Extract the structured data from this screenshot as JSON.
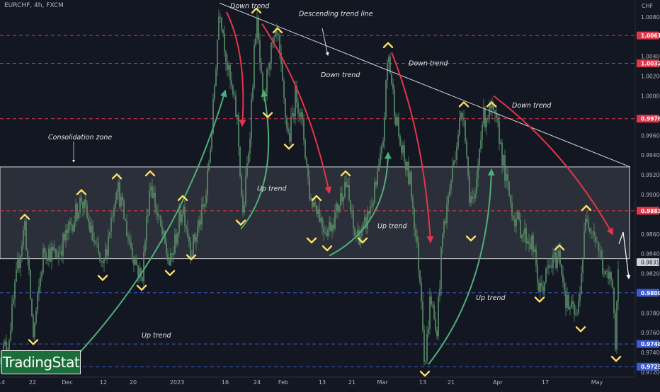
{
  "header": {
    "symbol": "EURCHF, 4h, FXCM",
    "currency": "CHF"
  },
  "brand": {
    "text": "TradingStat"
  },
  "colors": {
    "background": "#131722",
    "candles": "#5b8f6a",
    "resistance_lines": "#e0374a",
    "support_lines": "#3a5bd1",
    "down_arrows": "#e5344a",
    "up_arrows": "#4fae78",
    "markers": "#ffe066",
    "trendline": "#d1d4dc",
    "zone_fill": "rgba(210,210,215,0.13)",
    "zone_border": "#d8d8d8",
    "current_price_arrow": "#ffffff"
  },
  "chart_data": {
    "type": "candlestick",
    "instrument": "EURCHF",
    "timeframe": "4h",
    "source": "FXCM",
    "ylim": [
      0.9715,
      1.0095
    ],
    "y_ticks": [
      "1.00800",
      "1.00400",
      "1.00200",
      "1.00000",
      "0.99600",
      "0.99400",
      "0.99200",
      "0.99000",
      "0.98600",
      "0.98400",
      "0.98200",
      "0.98000",
      "0.97800",
      "0.97600",
      "0.97400",
      "0.97200"
    ],
    "x_ticks": [
      "14",
      "22",
      "Dec",
      "12",
      "20",
      "2023",
      "16",
      "24",
      "Feb",
      "13",
      "21",
      "Mar",
      "13",
      "21",
      "Apr",
      "17",
      "May"
    ],
    "x_tick_index": [
      2,
      46,
      95,
      146,
      188,
      250,
      318,
      363,
      400,
      455,
      497,
      540,
      597,
      637,
      703,
      770,
      843
    ],
    "price_levels": [
      {
        "value": 1.00612,
        "label": "1.00612",
        "kind": "resistance"
      },
      {
        "value": 1.00329,
        "label": "1.00329",
        "kind": "resistance"
      },
      {
        "value": 0.99769,
        "label": "0.99769",
        "kind": "resistance"
      },
      {
        "value": 0.98836,
        "label": "0.98836",
        "kind": "resistance"
      },
      {
        "value": 0.98005,
        "label": "0.98005",
        "kind": "support"
      },
      {
        "value": 0.97486,
        "label": "0.97486",
        "kind": "support"
      },
      {
        "value": 0.97256,
        "label": "0.97256",
        "kind": "support"
      }
    ],
    "current_price": {
      "value": 0.98315,
      "label": "0.98315"
    },
    "consolidation_zone": {
      "top": 0.9928,
      "bottom": 0.9835,
      "label": "Consolidation zone"
    },
    "descending_trendline": {
      "from": [
        310,
        1.0094
      ],
      "to": [
        890,
        0.9928
      ],
      "label": "Descending trend line"
    },
    "path": [
      [
        0,
        0.9735
      ],
      [
        12,
        0.9752
      ],
      [
        25,
        0.9825
      ],
      [
        35,
        0.9871
      ],
      [
        47,
        0.9757
      ],
      [
        62,
        0.9845
      ],
      [
        80,
        0.9838
      ],
      [
        100,
        0.9868
      ],
      [
        115,
        0.9896
      ],
      [
        130,
        0.9858
      ],
      [
        145,
        0.9822
      ],
      [
        165,
        0.9912
      ],
      [
        180,
        0.986
      ],
      [
        200,
        0.9812
      ],
      [
        212,
        0.9915
      ],
      [
        225,
        0.987
      ],
      [
        240,
        0.9827
      ],
      [
        258,
        0.989
      ],
      [
        270,
        0.9843
      ],
      [
        290,
        0.9892
      ],
      [
        300,
        0.9975
      ],
      [
        310,
        1.0094
      ],
      [
        322,
        1.0025
      ],
      [
        335,
        0.9975
      ],
      [
        343,
        0.9875
      ],
      [
        352,
        0.9955
      ],
      [
        362,
        1.008
      ],
      [
        372,
        0.9985
      ],
      [
        380,
        1.004
      ],
      [
        392,
        1.006
      ],
      [
        402,
        0.9985
      ],
      [
        408,
        0.9955
      ],
      [
        418,
        1.0005
      ],
      [
        428,
        0.9965
      ],
      [
        438,
        0.9895
      ],
      [
        447,
        0.989
      ],
      [
        455,
        0.987
      ],
      [
        463,
        0.9865
      ],
      [
        474,
        0.988
      ],
      [
        488,
        0.9915
      ],
      [
        500,
        0.986
      ],
      [
        512,
        0.986
      ],
      [
        530,
        0.9905
      ],
      [
        540,
        0.9945
      ],
      [
        548,
        1.0045
      ],
      [
        556,
        0.9995
      ],
      [
        565,
        0.995
      ],
      [
        580,
        0.991
      ],
      [
        595,
        0.98
      ],
      [
        600,
        0.9725
      ],
      [
        608,
        0.98
      ],
      [
        616,
        0.9755
      ],
      [
        625,
        0.986
      ],
      [
        638,
        0.992
      ],
      [
        648,
        0.997
      ],
      [
        655,
        0.9985
      ],
      [
        662,
        0.9905
      ],
      [
        670,
        0.9885
      ],
      [
        680,
        0.9975
      ],
      [
        694,
        0.9985
      ],
      [
        705,
        0.996
      ],
      [
        714,
        0.9915
      ],
      [
        725,
        0.988
      ],
      [
        740,
        0.986
      ],
      [
        752,
        0.985
      ],
      [
        762,
        0.98
      ],
      [
        775,
        0.9825
      ],
      [
        790,
        0.984
      ],
      [
        800,
        0.979
      ],
      [
        815,
        0.9775
      ],
      [
        828,
        0.988
      ],
      [
        840,
        0.986
      ],
      [
        855,
        0.9815
      ],
      [
        865,
        0.9815
      ],
      [
        869,
        0.9745
      ],
      [
        874,
        0.9835
      ]
    ],
    "markers": [
      {
        "x": 35,
        "value": 0.9871,
        "dir": "up"
      },
      {
        "x": 47,
        "value": 0.9757,
        "dir": "down"
      },
      {
        "x": 115,
        "value": 0.9896,
        "dir": "up"
      },
      {
        "x": 145,
        "value": 0.9822,
        "dir": "down"
      },
      {
        "x": 165,
        "value": 0.9912,
        "dir": "up"
      },
      {
        "x": 200,
        "value": 0.9812,
        "dir": "down"
      },
      {
        "x": 212,
        "value": 0.9915,
        "dir": "up"
      },
      {
        "x": 240,
        "value": 0.9827,
        "dir": "down"
      },
      {
        "x": 258,
        "value": 0.989,
        "dir": "up"
      },
      {
        "x": 270,
        "value": 0.9843,
        "dir": "down"
      },
      {
        "x": 310,
        "value": 1.0094,
        "dir": "up"
      },
      {
        "x": 340,
        "value": 0.9878,
        "dir": "down"
      },
      {
        "x": 362,
        "value": 1.008,
        "dir": "up"
      },
      {
        "x": 378,
        "value": 0.9987,
        "dir": "down"
      },
      {
        "x": 392,
        "value": 1.006,
        "dir": "up"
      },
      {
        "x": 408,
        "value": 0.9955,
        "dir": "down"
      },
      {
        "x": 440,
        "value": 0.986,
        "dir": "down"
      },
      {
        "x": 447,
        "value": 0.989,
        "dir": "up"
      },
      {
        "x": 462,
        "value": 0.9852,
        "dir": "down"
      },
      {
        "x": 488,
        "value": 0.9915,
        "dir": "up"
      },
      {
        "x": 512,
        "value": 0.986,
        "dir": "down"
      },
      {
        "x": 548,
        "value": 1.0045,
        "dir": "up"
      },
      {
        "x": 600,
        "value": 0.9725,
        "dir": "down"
      },
      {
        "x": 655,
        "value": 0.9985,
        "dir": "up"
      },
      {
        "x": 665,
        "value": 0.9862,
        "dir": "down"
      },
      {
        "x": 694,
        "value": 0.9985,
        "dir": "up"
      },
      {
        "x": 762,
        "value": 0.98,
        "dir": "down"
      },
      {
        "x": 790,
        "value": 0.984,
        "dir": "up"
      },
      {
        "x": 820,
        "value": 0.977,
        "dir": "down"
      },
      {
        "x": 828,
        "value": 0.988,
        "dir": "up"
      },
      {
        "x": 870,
        "value": 0.974,
        "dir": "down"
      }
    ],
    "annotations": [
      {
        "text": "Down trend",
        "x": 325,
        "value": 1.0089
      },
      {
        "text": "Descending trend line",
        "x": 422,
        "value": 1.0081
      },
      {
        "text": "Down trend",
        "x": 453,
        "value": 1.0019
      },
      {
        "text": "Down trend",
        "x": 577,
        "value": 1.0031
      },
      {
        "text": "Down trend",
        "x": 723,
        "value": 0.9988
      },
      {
        "text": "Consolidation zone",
        "x": 68,
        "value": 0.9956
      },
      {
        "text": "Up trend",
        "x": 363,
        "value": 0.9904
      },
      {
        "text": "Up trend",
        "x": 533,
        "value": 0.9866
      },
      {
        "text": "Up trend",
        "x": 672,
        "value": 0.9793
      },
      {
        "text": "Up trend",
        "x": 200,
        "value": 0.9755
      }
    ],
    "down_trend_arrows": [
      {
        "from": [
          320,
          1.0085
        ],
        "to": [
          342,
          0.997
        ]
      },
      {
        "from": [
          370,
          1.0073
        ],
        "to": [
          465,
          0.9902
        ]
      },
      {
        "from": [
          553,
          1.0044
        ],
        "to": [
          608,
          0.9852
        ]
      },
      {
        "from": [
          697,
          1.0
        ],
        "to": [
          865,
          0.986
        ]
      }
    ],
    "up_trend_arrows": [
      {
        "from": [
          110,
          0.9738
        ],
        "to": [
          318,
          1.0005
        ]
      },
      {
        "from": [
          340,
          0.9865
        ],
        "to": [
          372,
          1.0005
        ]
      },
      {
        "from": [
          465,
          0.9838
        ],
        "to": [
          548,
          0.9942
        ]
      },
      {
        "from": [
          605,
          0.9728
        ],
        "to": [
          694,
          0.9925
        ]
      }
    ],
    "projection_arrow": {
      "from": [
        874,
        0.985
      ],
      "to": [
        888,
        0.9815
      ]
    }
  }
}
